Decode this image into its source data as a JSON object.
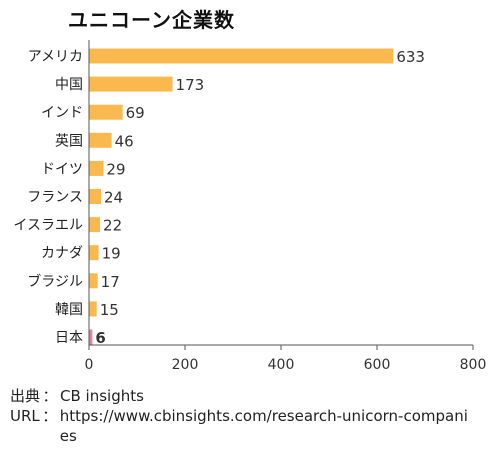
{
  "title": "ユニコーン企業数",
  "chart_data": {
    "type": "bar",
    "orientation": "horizontal",
    "title": "ユニコーン企業数",
    "categories": [
      "アメリカ",
      "中国",
      "インド",
      "英国",
      "ドイツ",
      "フランス",
      "イスラエル",
      "カナダ",
      "ブラジル",
      "韓国",
      "日本"
    ],
    "values": [
      633,
      173,
      69,
      46,
      29,
      24,
      22,
      19,
      17,
      15,
      6
    ],
    "value_labels": [
      "633",
      "173",
      "69",
      "46",
      "29",
      "24",
      "22",
      "19",
      "17",
      "15",
      "6"
    ],
    "highlight_index": 10,
    "xlim": [
      0,
      800
    ],
    "xticks": [
      0,
      200,
      400,
      600,
      800
    ],
    "xtick_labels": [
      "0",
      "200",
      "400",
      "600",
      "800"
    ],
    "grid": false,
    "legend": "none",
    "colors": {
      "bar": "#F9B94F",
      "highlight_bar": "#E0839E",
      "highlight_text": "#E3582D",
      "axis": "#555555"
    }
  },
  "source": {
    "label": "出典",
    "separator": "：",
    "value": "CB insights"
  },
  "url": {
    "label": "URL",
    "separator": "：",
    "value": "https://www.cbinsights.com/research-unicorn-companies"
  }
}
